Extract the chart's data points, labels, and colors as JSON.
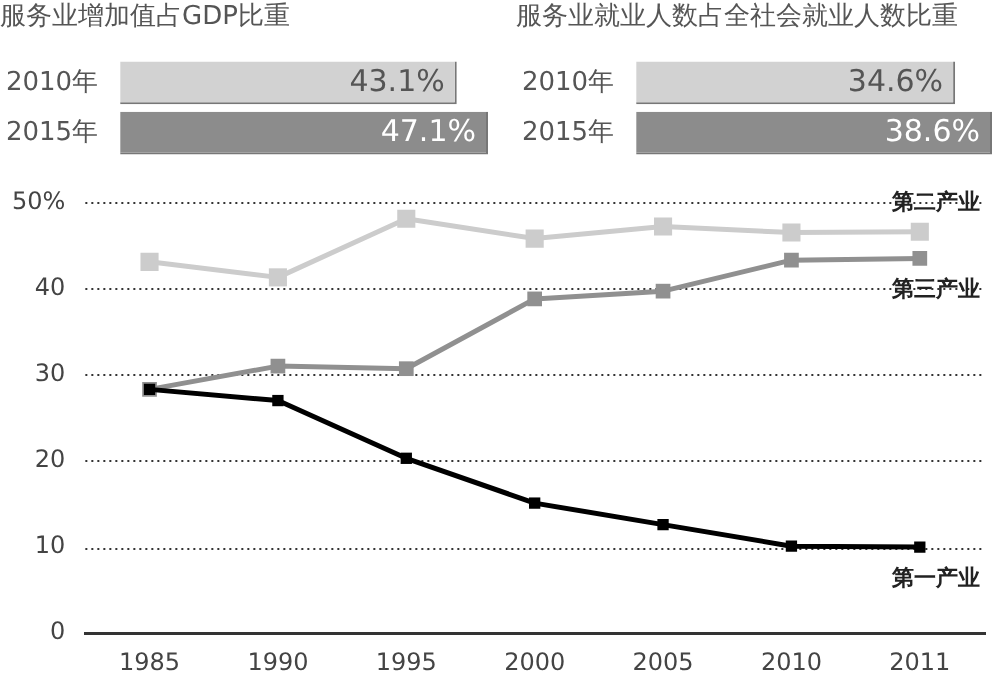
{
  "chart_data": [
    {
      "type": "bar",
      "orientation": "horizontal",
      "title": "服务业增加值占GDP比重",
      "categories": [
        "2010年",
        "2015年"
      ],
      "values": [
        43.1,
        47.1
      ],
      "colors": [
        "#d2d2d2",
        "#8c8c8c"
      ],
      "value_labels": [
        "43.1%",
        "47.1%"
      ],
      "legend": false
    },
    {
      "type": "bar",
      "orientation": "horizontal",
      "title": "服务业就业人数占全社会就业人数比重",
      "categories": [
        "2010年",
        "2015年"
      ],
      "values": [
        34.6,
        38.6
      ],
      "colors": [
        "#d2d2d2",
        "#8c8c8c"
      ],
      "value_labels": [
        "34.6%",
        "38.6%"
      ],
      "legend": false
    },
    {
      "type": "line",
      "categories": [
        "1985",
        "1990",
        "1995",
        "2000",
        "2005",
        "2010",
        "2011"
      ],
      "series": [
        {
          "name": "第二产业",
          "color": "#cccccc",
          "values": [
            43.1,
            41.3,
            48.1,
            45.8,
            47.2,
            46.5,
            46.6
          ]
        },
        {
          "name": "第三产业",
          "color": "#909090",
          "values": [
            28.3,
            31.0,
            30.7,
            38.8,
            39.7,
            43.3,
            43.5
          ]
        },
        {
          "name": "第一产业",
          "color": "#000000",
          "values": [
            28.3,
            27.0,
            20.3,
            15.1,
            12.6,
            10.1,
            10.0
          ]
        }
      ],
      "ylim": [
        0,
        50
      ],
      "yticks": [
        0,
        10,
        20,
        30,
        40,
        {
          "value": 50,
          "label": "50%"
        }
      ],
      "grid": "y",
      "legend": false,
      "marker": "square",
      "line_style": "solid"
    }
  ]
}
